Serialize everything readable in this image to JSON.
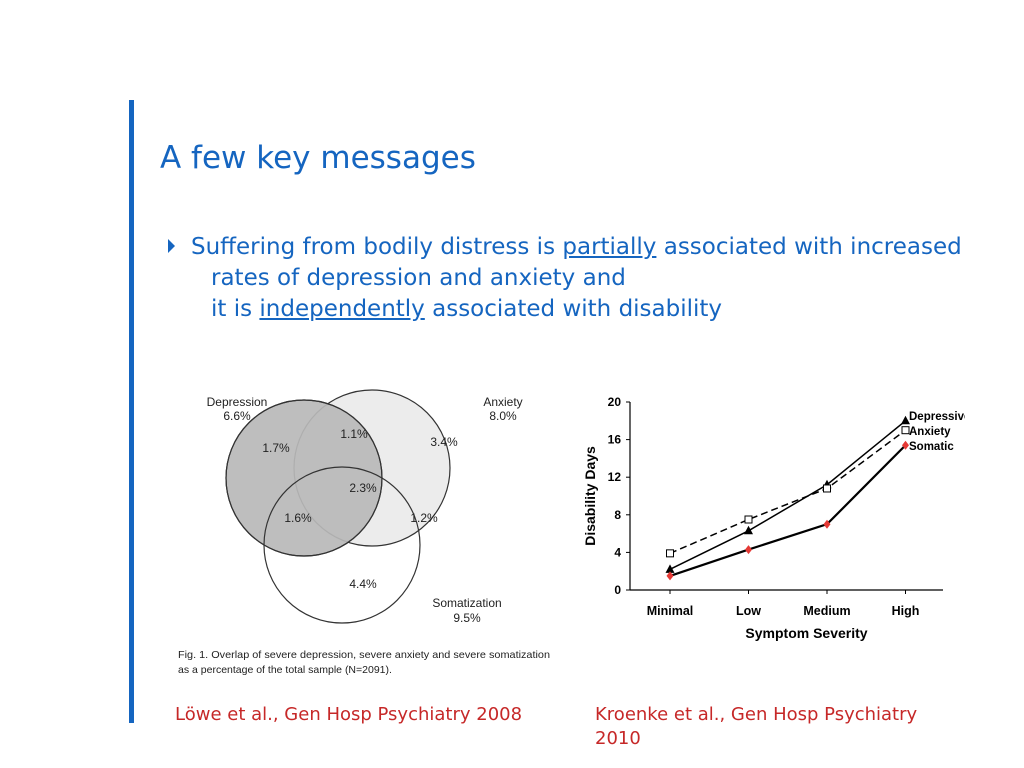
{
  "slide": {
    "title": "A few key messages",
    "bullet": {
      "line1_pre": "Suffering from bodily distress is ",
      "line1_u": "partially",
      "line1_post": " associated with increased",
      "line2": "rates of depression and anxiety and",
      "line3_pre": "it is ",
      "line3_u": "independently",
      "line3_post": " associated with disability"
    },
    "accent_color": "#1565c0",
    "caption_color": "#c62828"
  },
  "venn": {
    "depression_label": "Depression",
    "depression_pct": "6.6%",
    "anxiety_label": "Anxiety",
    "anxiety_pct": "8.0%",
    "somatization_label": "Somatization",
    "somatization_pct": "9.5%",
    "regions": {
      "dep_only": "1.7%",
      "dep_anx": "1.1%",
      "anx_only": "3.4%",
      "all_three": "2.3%",
      "dep_som": "1.6%",
      "anx_som": "1.2%",
      "som_only": "4.4%"
    },
    "fig_caption_line1": "Fig. 1. Overlap of severe depression, severe anxiety and severe somatization",
    "fig_caption_line2": "as a percentage of the total sample (N=2091)."
  },
  "chart_data": {
    "type": "line",
    "categories": [
      "Minimal",
      "Low",
      "Medium",
      "High"
    ],
    "xlabel": "Symptom Severity",
    "ylabel": "Disability Days",
    "ylim": [
      0,
      20
    ],
    "yticks": [
      "0",
      "4",
      "8",
      "12",
      "16",
      "20"
    ],
    "series": [
      {
        "name": "Depressive",
        "values": [
          2.2,
          6.3,
          11.2,
          18.0
        ],
        "marker": "triangle",
        "color": "#000000",
        "dash": "solid"
      },
      {
        "name": "Anxiety",
        "values": [
          3.9,
          7.5,
          10.8,
          17.0
        ],
        "marker": "square",
        "color": "#000000",
        "dash": "dashed"
      },
      {
        "name": "Somatic",
        "values": [
          1.5,
          4.3,
          7.0,
          15.4
        ],
        "marker": "diamond",
        "color": "#e53935",
        "dash": "solid"
      }
    ],
    "legend": "top-right",
    "grid": false
  },
  "citations": {
    "left": "Löwe et al., Gen Hosp Psychiatry 2008",
    "right_line1": "Kroenke et al., Gen Hosp Psychiatry",
    "right_line2": "2010"
  }
}
